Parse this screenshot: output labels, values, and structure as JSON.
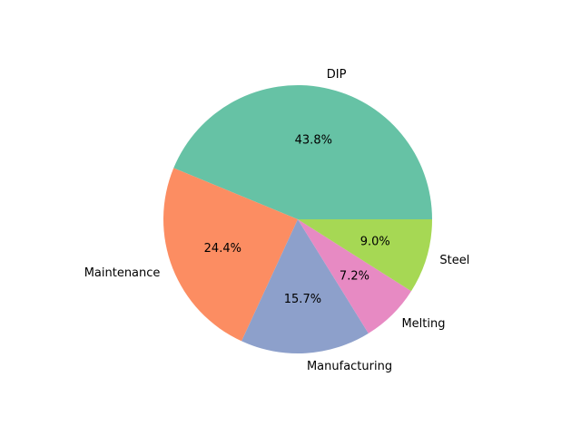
{
  "chart_data": {
    "type": "pie",
    "title": "",
    "start_angle_deg": 0,
    "direction": "counterclockwise",
    "slices": [
      {
        "label": "DIP",
        "value": 43.8,
        "pct_label": "43.8%",
        "color": "#66c2a5"
      },
      {
        "label": "Maintenance",
        "value": 24.4,
        "pct_label": "24.4%",
        "color": "#fc8d62"
      },
      {
        "label": "Manufacturing",
        "value": 15.7,
        "pct_label": "15.7%",
        "color": "#8da0cb"
      },
      {
        "label": "Melting",
        "value": 7.2,
        "pct_label": "7.2%",
        "color": "#e78ac3"
      },
      {
        "label": "Steel",
        "value": 9.0,
        "pct_label": "9.0%",
        "color": "#a6d854"
      }
    ]
  }
}
